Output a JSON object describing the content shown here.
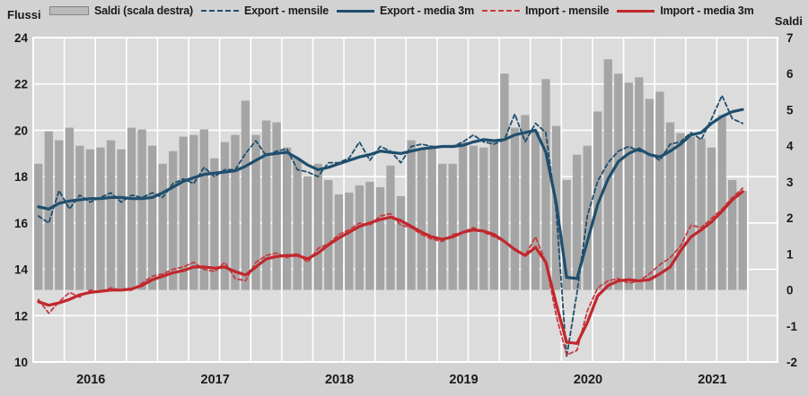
{
  "axes_titles": {
    "left": "Flussi",
    "right": "Saldi"
  },
  "legend": [
    {
      "label": "Saldi (scala destra)",
      "swatch": "bar",
      "color": "#a5a5a5"
    },
    {
      "label": "Export - mensile",
      "swatch": "dashed",
      "color": "#1f4e6d"
    },
    {
      "label": "Export - media 3m",
      "swatch": "solid",
      "color": "#1f4e6d"
    },
    {
      "label": "Import - mensile",
      "swatch": "dashed",
      "color": "#c73b42"
    },
    {
      "label": "Import - media 3m",
      "swatch": "solid",
      "color": "#c1272d"
    }
  ],
  "chart_data": {
    "type": "combo-bar-line",
    "x_unit": "month",
    "n_months": 69,
    "x_range_reading": "2016-01 to 2021-09",
    "x_year_labels": [
      "2016",
      "2017",
      "2018",
      "2019",
      "2020",
      "2021"
    ],
    "left_axis": {
      "title": "Flussi",
      "min": 10,
      "max": 24,
      "step": 2,
      "ticks": [
        "24",
        "22",
        "20",
        "18",
        "16",
        "14",
        "12",
        "10"
      ]
    },
    "right_axis": {
      "title": "Saldi",
      "min": -2,
      "max": 7,
      "step": 1,
      "ticks": [
        "7",
        "6",
        "5",
        "4",
        "3",
        "2",
        "1",
        "0",
        "-1",
        "-2"
      ]
    },
    "grid": {
      "horizontal": "every 2 units (left axis)",
      "vertical": "quarterly",
      "color": "#ffffff"
    },
    "colors": {
      "background": "#d2d2d2",
      "plot_background": "#dcdcdc",
      "bars": "#a5a5a5",
      "export": "#1f4e6d",
      "import_solid": "#c1272d",
      "import_dashed": "#c73b42",
      "text": "#1a1a1a",
      "gridline": "#ffffff"
    },
    "series": [
      {
        "name": "Saldi (scala destra)",
        "axis": "right",
        "type": "bar",
        "values": [
          3.5,
          4.4,
          4.15,
          4.5,
          4.0,
          3.9,
          3.95,
          4.15,
          3.9,
          4.5,
          4.45,
          4.0,
          3.5,
          3.85,
          4.25,
          4.3,
          4.45,
          3.65,
          4.1,
          4.3,
          5.25,
          4.3,
          4.7,
          4.65,
          3.95,
          3.65,
          3.15,
          3.5,
          3.05,
          2.65,
          2.7,
          2.9,
          3.0,
          2.85,
          3.45,
          2.6,
          4.15,
          3.9,
          4.0,
          3.5,
          3.5,
          4.1,
          4.0,
          3.95,
          4.1,
          6.0,
          4.5,
          4.85,
          4.4,
          5.85,
          4.55,
          3.05,
          3.75,
          4.0,
          4.95,
          6.4,
          6.0,
          5.75,
          5.9,
          5.3,
          5.5,
          4.65,
          4.35,
          4.25,
          4.2,
          3.95,
          4.85,
          3.05,
          2.75
        ]
      },
      {
        "name": "Export - mensile",
        "axis": "left",
        "type": "line-dashed",
        "values": [
          16.3,
          16.0,
          17.4,
          16.6,
          17.2,
          16.9,
          17.1,
          17.3,
          16.9,
          17.2,
          17.1,
          17.3,
          17.1,
          17.7,
          17.9,
          17.7,
          18.4,
          18.0,
          18.3,
          18.3,
          19.0,
          19.55,
          18.9,
          19.1,
          19.2,
          18.3,
          18.2,
          18.0,
          18.6,
          18.6,
          18.8,
          19.5,
          18.7,
          19.3,
          19.1,
          18.6,
          19.3,
          19.4,
          19.3,
          19.3,
          19.3,
          19.5,
          19.8,
          19.5,
          19.4,
          19.6,
          20.7,
          19.5,
          20.3,
          19.9,
          16.5,
          10.2,
          13.0,
          16.3,
          17.8,
          18.6,
          19.1,
          19.3,
          19.1,
          19.0,
          18.7,
          19.4,
          19.5,
          19.9,
          19.6,
          20.5,
          21.5,
          20.5,
          20.3
        ]
      },
      {
        "name": "Export - media 3m",
        "axis": "left",
        "type": "line",
        "values": [
          16.7,
          16.6,
          16.85,
          16.95,
          17.0,
          17.05,
          17.05,
          17.1,
          17.1,
          17.05,
          17.05,
          17.1,
          17.3,
          17.55,
          17.8,
          17.95,
          18.1,
          18.15,
          18.2,
          18.25,
          18.45,
          18.7,
          18.95,
          19.0,
          19.05,
          18.8,
          18.5,
          18.3,
          18.4,
          18.55,
          18.7,
          18.85,
          18.95,
          19.1,
          19.05,
          19.0,
          19.1,
          19.2,
          19.25,
          19.3,
          19.3,
          19.35,
          19.5,
          19.6,
          19.55,
          19.6,
          19.8,
          19.9,
          20.0,
          19.05,
          16.85,
          13.65,
          13.6,
          15.2,
          16.8,
          17.9,
          18.65,
          19.0,
          19.2,
          18.95,
          18.85,
          19.1,
          19.4,
          19.8,
          19.9,
          20.3,
          20.6,
          20.8,
          20.9
        ]
      },
      {
        "name": "Import - mensile",
        "axis": "left",
        "type": "line-dashed",
        "values": [
          12.7,
          12.1,
          12.6,
          13.0,
          12.8,
          13.1,
          13.0,
          13.2,
          13.1,
          13.1,
          13.4,
          13.7,
          13.8,
          14.0,
          14.1,
          14.3,
          14.0,
          13.9,
          14.3,
          13.6,
          13.5,
          14.3,
          14.6,
          14.7,
          14.5,
          14.7,
          14.3,
          14.9,
          15.1,
          15.5,
          15.7,
          16.0,
          15.9,
          16.3,
          16.4,
          15.9,
          15.8,
          15.5,
          15.3,
          15.2,
          15.5,
          15.6,
          15.8,
          15.6,
          15.4,
          15.2,
          14.9,
          14.6,
          15.4,
          14.3,
          12.0,
          10.3,
          10.5,
          12.2,
          13.2,
          13.5,
          13.6,
          13.4,
          13.5,
          13.8,
          14.2,
          14.5,
          15.0,
          15.9,
          15.8,
          16.2,
          16.6,
          17.1,
          17.5
        ]
      },
      {
        "name": "Import - media 3m",
        "axis": "left",
        "type": "line",
        "values": [
          12.6,
          12.45,
          12.55,
          12.7,
          12.9,
          13.0,
          13.05,
          13.1,
          13.1,
          13.15,
          13.3,
          13.55,
          13.7,
          13.85,
          13.95,
          14.1,
          14.1,
          14.05,
          14.1,
          13.9,
          13.75,
          14.1,
          14.45,
          14.55,
          14.6,
          14.6,
          14.45,
          14.7,
          15.05,
          15.35,
          15.6,
          15.85,
          16.0,
          16.15,
          16.25,
          16.1,
          15.85,
          15.6,
          15.4,
          15.3,
          15.4,
          15.6,
          15.7,
          15.65,
          15.5,
          15.2,
          14.85,
          14.6,
          14.95,
          14.3,
          12.5,
          10.85,
          10.8,
          11.7,
          12.85,
          13.3,
          13.5,
          13.55,
          13.5,
          13.55,
          13.8,
          14.1,
          14.8,
          15.4,
          15.7,
          16.05,
          16.5,
          17.0,
          17.35
        ]
      }
    ]
  }
}
